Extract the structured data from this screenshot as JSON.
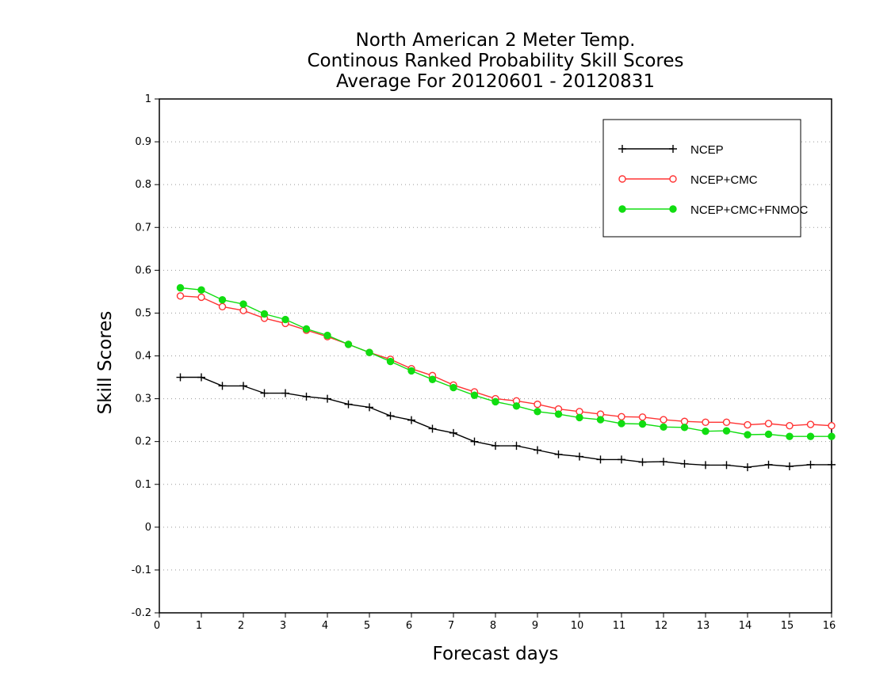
{
  "chart_data": {
    "type": "line",
    "title": [
      "North American 2 Meter Temp.",
      "Continous Ranked Probability Skill Scores",
      "Average For 20120601 - 20120831"
    ],
    "xlabel": "Forecast days",
    "ylabel": "Skill Scores",
    "xlim": [
      0,
      16
    ],
    "ylim": [
      -0.2,
      1
    ],
    "x_ticks": [
      0,
      1,
      2,
      3,
      4,
      5,
      6,
      7,
      8,
      9,
      10,
      11,
      12,
      13,
      14,
      15,
      16
    ],
    "y_ticks": [
      -0.2,
      -0.1,
      0,
      0.1,
      0.2,
      0.3,
      0.4,
      0.5,
      0.6,
      0.7,
      0.8,
      0.9,
      1
    ],
    "y_tick_labels": [
      "-0.2",
      "-0.1",
      "0",
      "0.1",
      "0.2",
      "0.3",
      "0.4",
      "0.5",
      "0.6",
      "0.7",
      "0.8",
      "0.9",
      "1"
    ],
    "grid": "horizontal dotted",
    "legend_position": "top-right",
    "x": [
      0.5,
      1,
      1.5,
      2,
      2.5,
      3,
      3.5,
      4,
      4.5,
      5,
      5.5,
      6,
      6.5,
      7,
      7.5,
      8,
      8.5,
      9,
      9.5,
      10,
      10.5,
      11,
      11.5,
      12,
      12.5,
      13,
      13.5,
      14,
      14.5,
      15,
      15.5,
      16
    ],
    "series": [
      {
        "name": "NCEP",
        "color": "#000000",
        "marker": "plus",
        "values": [
          0.35,
          0.35,
          0.33,
          0.33,
          0.313,
          0.313,
          0.305,
          0.3,
          0.287,
          0.28,
          0.26,
          0.25,
          0.23,
          0.22,
          0.2,
          0.19,
          0.19,
          0.18,
          0.17,
          0.165,
          0.158,
          0.158,
          0.152,
          0.153,
          0.148,
          0.145,
          0.145,
          0.14,
          0.146,
          0.142,
          0.146,
          0.146
        ]
      },
      {
        "name": "NCEP+CMC",
        "color": "#ff3333",
        "marker": "open-circle",
        "values": [
          0.54,
          0.537,
          0.515,
          0.506,
          0.488,
          0.476,
          0.46,
          0.445,
          0.427,
          0.408,
          0.392,
          0.37,
          0.354,
          0.332,
          0.316,
          0.3,
          0.295,
          0.287,
          0.276,
          0.27,
          0.264,
          0.258,
          0.257,
          0.251,
          0.247,
          0.245,
          0.245,
          0.239,
          0.242,
          0.237,
          0.24,
          0.237
        ]
      },
      {
        "name": "NCEP+CMC+FNMOC",
        "color": "#11dd11",
        "marker": "filled-circle",
        "values": [
          0.559,
          0.554,
          0.531,
          0.521,
          0.498,
          0.485,
          0.463,
          0.448,
          0.427,
          0.408,
          0.387,
          0.365,
          0.345,
          0.326,
          0.308,
          0.293,
          0.283,
          0.27,
          0.264,
          0.256,
          0.251,
          0.242,
          0.241,
          0.234,
          0.233,
          0.224,
          0.225,
          0.216,
          0.217,
          0.212,
          0.212,
          0.212
        ]
      }
    ]
  }
}
